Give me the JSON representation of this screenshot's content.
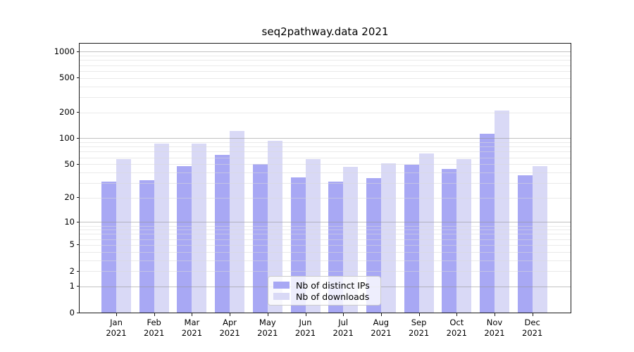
{
  "title": "seq2pathway.data 2021",
  "chart_data": {
    "type": "bar",
    "title": "seq2pathway.data 2021",
    "categories": [
      "Jan 2021",
      "Feb 2021",
      "Mar 2021",
      "Apr 2021",
      "May 2021",
      "Jun 2021",
      "Jul 2021",
      "Aug 2021",
      "Sep 2021",
      "Oct 2021",
      "Nov 2021",
      "Dec 2021"
    ],
    "series": [
      {
        "name": "Nb of distinct IPs",
        "color": "#a8a8f4",
        "values": [
          31,
          32,
          47,
          64,
          50,
          35,
          31,
          34,
          49,
          44,
          113,
          37
        ]
      },
      {
        "name": "Nb of downloads",
        "color": "#d9d9f6",
        "values": [
          57,
          86,
          87,
          122,
          94,
          57,
          46,
          51,
          67,
          57,
          210,
          47
        ]
      }
    ],
    "yscale": "log1p",
    "y_ticks": [
      0,
      1,
      2,
      5,
      10,
      20,
      50,
      100,
      200,
      500,
      1000
    ],
    "ylim": [
      0,
      1240
    ],
    "grid": true,
    "legend_position": "lower center"
  },
  "colors": {
    "grid_minor": "#d9d9d9",
    "grid_major": "#8f8f8f",
    "axis_spine": "#1a1a1a",
    "tick_label": "#000000",
    "legend_border": "#cccccc",
    "legend_background": "#ffffff",
    "figure_background": "#ffffff"
  }
}
